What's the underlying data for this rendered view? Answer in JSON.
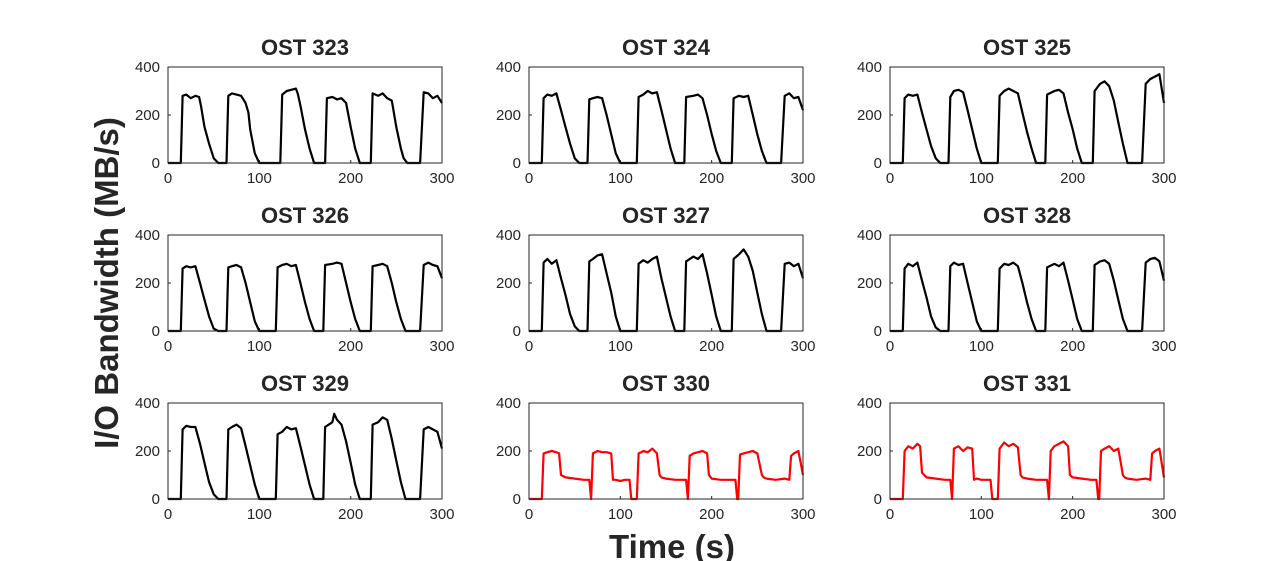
{
  "figure": {
    "ylabel": "I/O Bandwidth (MB/s)",
    "xlabel": "Time (s)"
  },
  "chart_data": [
    {
      "type": "line",
      "title": "OST 323",
      "color": "#000000",
      "xlim": [
        0,
        300
      ],
      "ylim": [
        0,
        400
      ],
      "xticks": [
        0,
        100,
        200,
        300
      ],
      "yticks": [
        0,
        200,
        400
      ],
      "x": [
        0,
        12,
        14,
        16,
        20,
        25,
        30,
        34,
        36,
        40,
        45,
        50,
        55,
        62,
        64,
        66,
        70,
        75,
        80,
        85,
        88,
        90,
        95,
        100,
        107,
        120,
        123,
        125,
        130,
        135,
        140,
        142,
        145,
        150,
        155,
        160,
        170,
        172,
        174,
        180,
        185,
        190,
        195,
        200,
        205,
        210,
        220,
        222,
        224,
        230,
        235,
        240,
        245,
        250,
        255,
        258,
        262,
        265,
        270,
        276,
        280,
        285,
        290,
        295,
        300
      ],
      "y": [
        0,
        0,
        0,
        280,
        285,
        270,
        280,
        275,
        240,
        150,
        80,
        20,
        0,
        0,
        0,
        280,
        290,
        285,
        280,
        250,
        210,
        140,
        40,
        0,
        0,
        0,
        0,
        285,
        300,
        305,
        310,
        290,
        240,
        140,
        60,
        0,
        0,
        0,
        270,
        275,
        265,
        270,
        250,
        150,
        60,
        0,
        0,
        0,
        290,
        280,
        290,
        270,
        260,
        150,
        60,
        20,
        0,
        0,
        0,
        0,
        295,
        290,
        270,
        280,
        250
      ]
    },
    {
      "type": "line",
      "title": "OST 324",
      "color": "#000000",
      "xlim": [
        0,
        300
      ],
      "ylim": [
        0,
        400
      ],
      "xticks": [
        0,
        100,
        200,
        300
      ],
      "yticks": [
        0,
        200,
        400
      ],
      "x": [
        0,
        12,
        14,
        16,
        20,
        25,
        30,
        35,
        40,
        45,
        50,
        55,
        62,
        64,
        66,
        70,
        75,
        80,
        85,
        90,
        95,
        100,
        107,
        116,
        118,
        120,
        125,
        130,
        135,
        140,
        145,
        150,
        155,
        160,
        168,
        170,
        172,
        180,
        185,
        190,
        195,
        200,
        205,
        210,
        220,
        222,
        224,
        230,
        235,
        240,
        245,
        250,
        255,
        260,
        270,
        276,
        280,
        285,
        290,
        295,
        300
      ],
      "y": [
        0,
        0,
        0,
        270,
        285,
        280,
        290,
        220,
        150,
        80,
        20,
        0,
        0,
        0,
        265,
        270,
        275,
        270,
        200,
        120,
        40,
        0,
        0,
        0,
        0,
        275,
        285,
        300,
        290,
        295,
        220,
        140,
        60,
        0,
        0,
        0,
        275,
        280,
        285,
        270,
        200,
        120,
        50,
        0,
        0,
        0,
        270,
        280,
        275,
        280,
        200,
        120,
        50,
        0,
        0,
        0,
        280,
        290,
        270,
        275,
        220
      ]
    },
    {
      "type": "line",
      "title": "OST 325",
      "color": "#000000",
      "xlim": [
        0,
        300
      ],
      "ylim": [
        0,
        400
      ],
      "xticks": [
        0,
        100,
        200,
        300
      ],
      "yticks": [
        0,
        200,
        400
      ],
      "x": [
        0,
        12,
        14,
        16,
        20,
        25,
        30,
        35,
        40,
        45,
        50,
        55,
        62,
        64,
        66,
        70,
        75,
        80,
        85,
        90,
        95,
        100,
        107,
        116,
        118,
        120,
        125,
        130,
        135,
        140,
        145,
        150,
        155,
        160,
        168,
        170,
        172,
        180,
        185,
        190,
        195,
        200,
        205,
        210,
        220,
        222,
        224,
        230,
        235,
        240,
        245,
        250,
        255,
        260,
        270,
        276,
        280,
        285,
        290,
        295,
        300
      ],
      "y": [
        0,
        0,
        0,
        270,
        285,
        280,
        285,
        210,
        140,
        70,
        20,
        0,
        0,
        0,
        275,
        300,
        305,
        295,
        220,
        140,
        60,
        0,
        0,
        0,
        0,
        280,
        300,
        310,
        300,
        290,
        210,
        130,
        60,
        0,
        0,
        0,
        285,
        300,
        305,
        290,
        210,
        140,
        60,
        0,
        0,
        0,
        300,
        330,
        340,
        320,
        260,
        170,
        80,
        0,
        0,
        0,
        330,
        350,
        360,
        370,
        250
      ]
    },
    {
      "type": "line",
      "title": "OST 326",
      "color": "#000000",
      "xlim": [
        0,
        300
      ],
      "ylim": [
        0,
        400
      ],
      "xticks": [
        0,
        100,
        200,
        300
      ],
      "yticks": [
        0,
        200,
        400
      ],
      "x": [
        0,
        12,
        14,
        16,
        20,
        25,
        30,
        35,
        40,
        45,
        50,
        55,
        62,
        64,
        66,
        70,
        75,
        80,
        85,
        90,
        95,
        100,
        107,
        116,
        118,
        120,
        125,
        130,
        135,
        140,
        145,
        150,
        155,
        160,
        168,
        170,
        172,
        180,
        185,
        190,
        195,
        200,
        205,
        210,
        220,
        222,
        224,
        230,
        235,
        240,
        245,
        250,
        255,
        260,
        270,
        276,
        280,
        285,
        290,
        295,
        300
      ],
      "y": [
        0,
        0,
        0,
        260,
        270,
        265,
        270,
        200,
        130,
        60,
        10,
        0,
        0,
        0,
        265,
        270,
        275,
        265,
        200,
        120,
        40,
        0,
        0,
        0,
        0,
        265,
        275,
        280,
        270,
        275,
        200,
        120,
        50,
        0,
        0,
        0,
        275,
        280,
        285,
        280,
        200,
        120,
        50,
        0,
        0,
        0,
        270,
        275,
        280,
        270,
        200,
        120,
        50,
        0,
        0,
        0,
        275,
        285,
        275,
        270,
        220
      ]
    },
    {
      "type": "line",
      "title": "OST 327",
      "color": "#000000",
      "xlim": [
        0,
        300
      ],
      "ylim": [
        0,
        400
      ],
      "xticks": [
        0,
        100,
        200,
        300
      ],
      "yticks": [
        0,
        200,
        400
      ],
      "x": [
        0,
        12,
        14,
        16,
        20,
        25,
        30,
        35,
        40,
        45,
        50,
        55,
        62,
        64,
        66,
        70,
        75,
        80,
        85,
        90,
        95,
        100,
        107,
        116,
        118,
        120,
        125,
        130,
        135,
        140,
        145,
        150,
        155,
        160,
        168,
        170,
        172,
        180,
        185,
        190,
        195,
        200,
        205,
        210,
        220,
        222,
        224,
        230,
        235,
        240,
        245,
        250,
        255,
        260,
        270,
        276,
        280,
        285,
        290,
        295,
        300
      ],
      "y": [
        0,
        0,
        0,
        285,
        300,
        280,
        295,
        220,
        150,
        70,
        20,
        0,
        0,
        0,
        290,
        300,
        315,
        320,
        240,
        160,
        60,
        0,
        0,
        0,
        0,
        280,
        295,
        285,
        300,
        310,
        220,
        140,
        60,
        0,
        0,
        0,
        290,
        310,
        300,
        320,
        240,
        150,
        60,
        0,
        0,
        0,
        300,
        320,
        340,
        310,
        250,
        160,
        70,
        0,
        0,
        0,
        280,
        285,
        270,
        280,
        220
      ]
    },
    {
      "type": "line",
      "title": "OST 328",
      "color": "#000000",
      "xlim": [
        0,
        300
      ],
      "ylim": [
        0,
        400
      ],
      "xticks": [
        0,
        100,
        200,
        300
      ],
      "yticks": [
        0,
        200,
        400
      ],
      "x": [
        0,
        12,
        14,
        16,
        20,
        25,
        30,
        35,
        40,
        45,
        50,
        55,
        62,
        64,
        66,
        70,
        75,
        80,
        85,
        90,
        95,
        100,
        107,
        116,
        118,
        120,
        125,
        130,
        135,
        140,
        145,
        150,
        155,
        160,
        168,
        170,
        172,
        180,
        185,
        190,
        195,
        200,
        205,
        210,
        220,
        222,
        224,
        230,
        235,
        240,
        245,
        250,
        255,
        260,
        270,
        276,
        280,
        285,
        290,
        295,
        300
      ],
      "y": [
        0,
        0,
        0,
        260,
        280,
        270,
        285,
        210,
        140,
        60,
        15,
        0,
        0,
        0,
        270,
        285,
        275,
        280,
        200,
        120,
        40,
        0,
        0,
        0,
        0,
        260,
        280,
        275,
        285,
        270,
        200,
        120,
        50,
        0,
        0,
        0,
        265,
        280,
        270,
        285,
        210,
        130,
        50,
        0,
        0,
        0,
        275,
        290,
        295,
        280,
        210,
        130,
        50,
        0,
        0,
        0,
        285,
        300,
        305,
        290,
        210
      ]
    },
    {
      "type": "line",
      "title": "OST 329",
      "color": "#000000",
      "xlim": [
        0,
        300
      ],
      "ylim": [
        0,
        400
      ],
      "xticks": [
        0,
        100,
        200,
        300
      ],
      "yticks": [
        0,
        200,
        400
      ],
      "x": [
        0,
        12,
        14,
        16,
        20,
        25,
        30,
        35,
        40,
        45,
        50,
        55,
        62,
        64,
        66,
        70,
        75,
        80,
        85,
        90,
        95,
        100,
        107,
        116,
        118,
        120,
        125,
        130,
        135,
        140,
        145,
        150,
        155,
        160,
        168,
        170,
        172,
        180,
        182,
        185,
        190,
        195,
        200,
        205,
        210,
        220,
        222,
        224,
        230,
        235,
        240,
        245,
        250,
        255,
        260,
        270,
        276,
        280,
        285,
        290,
        295,
        300
      ],
      "y": [
        0,
        0,
        0,
        290,
        305,
        300,
        300,
        230,
        150,
        70,
        20,
        0,
        0,
        0,
        290,
        300,
        310,
        295,
        220,
        140,
        60,
        0,
        0,
        0,
        0,
        270,
        280,
        300,
        290,
        295,
        220,
        140,
        60,
        0,
        0,
        0,
        300,
        320,
        355,
        330,
        310,
        240,
        150,
        60,
        0,
        0,
        0,
        310,
        320,
        340,
        330,
        250,
        160,
        70,
        0,
        0,
        0,
        290,
        300,
        290,
        280,
        210
      ]
    },
    {
      "type": "line",
      "title": "OST 330",
      "color": "#ff0000",
      "xlim": [
        0,
        300
      ],
      "ylim": [
        0,
        400
      ],
      "xticks": [
        0,
        100,
        200,
        300
      ],
      "yticks": [
        0,
        200,
        400
      ],
      "x": [
        0,
        12,
        14,
        16,
        20,
        25,
        30,
        33,
        35,
        40,
        50,
        60,
        66,
        68,
        70,
        75,
        80,
        85,
        90,
        92,
        95,
        100,
        105,
        110,
        112,
        115,
        118,
        120,
        123,
        125,
        130,
        135,
        140,
        143,
        145,
        150,
        160,
        172,
        174,
        176,
        180,
        185,
        190,
        195,
        197,
        200,
        210,
        220,
        226,
        228,
        229,
        231,
        235,
        240,
        245,
        250,
        255,
        257,
        260,
        270,
        280,
        285,
        287,
        290,
        295,
        300
      ],
      "y": [
        0,
        0,
        0,
        190,
        195,
        200,
        195,
        190,
        100,
        90,
        85,
        80,
        80,
        0,
        190,
        200,
        195,
        195,
        190,
        80,
        80,
        75,
        80,
        80,
        0,
        0,
        0,
        190,
        195,
        200,
        195,
        210,
        190,
        100,
        90,
        85,
        80,
        80,
        0,
        180,
        190,
        195,
        200,
        190,
        100,
        85,
        80,
        80,
        80,
        0,
        0,
        185,
        190,
        195,
        200,
        190,
        100,
        90,
        85,
        80,
        85,
        80,
        180,
        190,
        200,
        100
      ]
    },
    {
      "type": "line",
      "title": "OST 331",
      "color": "#ff0000",
      "xlim": [
        0,
        300
      ],
      "ylim": [
        0,
        400
      ],
      "xticks": [
        0,
        100,
        200,
        300
      ],
      "yticks": [
        0,
        200,
        400
      ],
      "x": [
        0,
        12,
        14,
        16,
        20,
        25,
        30,
        33,
        35,
        40,
        50,
        60,
        66,
        68,
        70,
        75,
        80,
        85,
        90,
        92,
        95,
        100,
        105,
        110,
        112,
        115,
        118,
        120,
        123,
        125,
        130,
        135,
        140,
        143,
        145,
        150,
        160,
        172,
        174,
        176,
        180,
        185,
        190,
        195,
        197,
        200,
        210,
        220,
        226,
        228,
        229,
        231,
        235,
        240,
        245,
        250,
        255,
        257,
        260,
        270,
        280,
        285,
        287,
        290,
        295,
        300
      ],
      "y": [
        0,
        0,
        0,
        200,
        220,
        210,
        230,
        220,
        110,
        90,
        85,
        80,
        80,
        0,
        210,
        220,
        200,
        215,
        210,
        80,
        85,
        80,
        80,
        80,
        0,
        0,
        0,
        210,
        225,
        235,
        220,
        230,
        215,
        100,
        90,
        85,
        80,
        80,
        0,
        200,
        220,
        230,
        240,
        220,
        100,
        90,
        85,
        80,
        80,
        0,
        0,
        200,
        210,
        220,
        200,
        210,
        100,
        90,
        85,
        80,
        85,
        80,
        190,
        200,
        210,
        90
      ]
    }
  ]
}
